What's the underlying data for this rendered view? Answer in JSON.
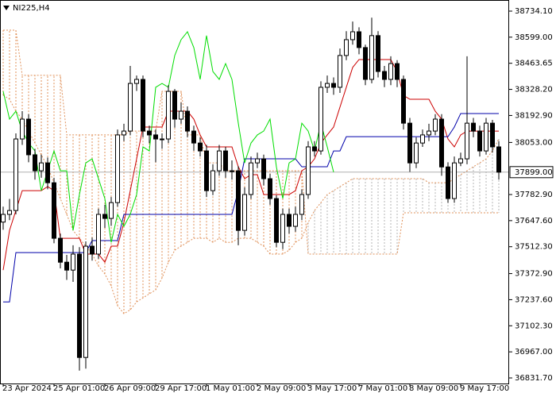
{
  "chart_data": {
    "type": "candlestick",
    "title": "NI225,H4",
    "categories": [
      "23 Apr 2024",
      null,
      null,
      null,
      null,
      null,
      null,
      null,
      "25 Apr 01:00",
      null,
      null,
      null,
      null,
      null,
      null,
      null,
      "26 Apr 09:00",
      null,
      null,
      null,
      null,
      null,
      null,
      null,
      "29 Apr 17:00",
      null,
      null,
      null,
      null,
      null,
      null,
      null,
      "1 May 01:00",
      null,
      null,
      null,
      null,
      null,
      null,
      null,
      "2 May 09:00",
      null,
      null,
      null,
      null,
      null,
      null,
      null,
      "3 May 17:00",
      null,
      null,
      null,
      null,
      null,
      null,
      null,
      "7 May 01:00",
      null,
      null,
      null,
      null,
      null,
      null,
      null,
      "8 May 09:00",
      null,
      null,
      null,
      null,
      null,
      null,
      null,
      "9 May 17:00",
      null,
      null,
      null,
      null,
      null,
      null
    ],
    "open": [
      37640,
      37680,
      37700,
      38071,
      38174,
      37989,
      37906,
      37947,
      37844,
      37556,
      37432,
      37391,
      37474,
      36938,
      37515,
      37474,
      37680,
      37659,
      37741,
      38092,
      38112,
      38359,
      38380,
      38112,
      38092,
      38071,
      38071,
      38318,
      38174,
      38215,
      38112,
      38050,
      38009,
      37803,
      37906,
      38009,
      37906,
      37906,
      37597,
      37783,
      37947,
      37968,
      37865,
      37762,
      37535,
      37680,
      37618,
      37680,
      37783,
      38030,
      38009,
      38339,
      38359,
      38339,
      38504,
      38586,
      38627,
      38545,
      38380,
      38607,
      38421,
      38380,
      38462,
      38380,
      38153,
      37947,
      38050,
      38092,
      38112,
      38174,
      37926,
      37762,
      37947,
      37968,
      38153,
      38112,
      38009,
      38153,
      38030
    ],
    "high": [
      37720,
      37760,
      38100,
      38215,
      38200,
      38020,
      37990,
      37975,
      37870,
      37580,
      37470,
      37520,
      37510,
      37540,
      37560,
      37710,
      37730,
      37770,
      38120,
      38150,
      38450,
      38400,
      38400,
      38140,
      38120,
      38100,
      38350,
      38330,
      38260,
      38240,
      38140,
      38080,
      38040,
      37940,
      38040,
      38030,
      37960,
      37930,
      37820,
      37980,
      38000,
      37990,
      37890,
      37780,
      37710,
      37710,
      37720,
      37810,
      38060,
      38060,
      38370,
      38400,
      38390,
      38540,
      38630,
      38680,
      38650,
      38560,
      38700,
      38630,
      38450,
      38500,
      38480,
      38400,
      38180,
      38080,
      38120,
      38150,
      38200,
      38200,
      37950,
      37980,
      38000,
      38500,
      38180,
      38140,
      38180,
      38170,
      38060
    ],
    "low": [
      37600,
      37650,
      37680,
      38040,
      37950,
      37860,
      37870,
      37810,
      37530,
      37400,
      37340,
      37330,
      36870,
      36880,
      37440,
      37450,
      37610,
      37620,
      37720,
      38060,
      38090,
      38320,
      38080,
      38050,
      37950,
      38020,
      38050,
      38130,
      38150,
      38080,
      38010,
      37980,
      37770,
      37780,
      37880,
      37870,
      37860,
      37520,
      37570,
      37760,
      37920,
      37830,
      37730,
      37510,
      37500,
      37580,
      37590,
      37650,
      37760,
      37980,
      37990,
      38310,
      38300,
      38310,
      38480,
      38560,
      38510,
      38350,
      38360,
      38390,
      38340,
      38350,
      38340,
      38120,
      37900,
      37920,
      38030,
      38060,
      38090,
      37880,
      37740,
      37740,
      37930,
      37940,
      38080,
      37980,
      37990,
      38000,
      37860
    ],
    "close": [
      37680,
      37700,
      38071,
      38174,
      37989,
      37906,
      37947,
      37844,
      37556,
      37432,
      37391,
      37474,
      36938,
      37515,
      37474,
      37680,
      37659,
      37741,
      38092,
      38112,
      38359,
      38380,
      38112,
      38092,
      38071,
      38071,
      38318,
      38174,
      38215,
      38112,
      38050,
      38009,
      37803,
      37906,
      38009,
      37906,
      37906,
      37597,
      37783,
      37947,
      37968,
      37865,
      37762,
      37535,
      37680,
      37618,
      37680,
      37783,
      38030,
      38009,
      38339,
      38359,
      38339,
      38504,
      38586,
      38627,
      38545,
      38380,
      38607,
      38421,
      38380,
      38462,
      38380,
      38153,
      37947,
      38050,
      38092,
      38112,
      38174,
      37926,
      37762,
      37947,
      37968,
      38153,
      38112,
      38009,
      38153,
      38030,
      37899
    ],
    "up_color": "#ffffff",
    "down_color": "#000000",
    "lines": [
      {
        "color": "#cc0000",
        "values": [
          37391,
          37597,
          37700,
          37803,
          37803,
          37803,
          37803,
          37824,
          37803,
          37556,
          37556,
          37556,
          37556,
          37474,
          37474,
          37474,
          37432,
          37515,
          37515,
          37638,
          37803,
          37968,
          38133,
          38133,
          38133,
          38133,
          38215,
          38215,
          38215,
          38215,
          38174,
          38092,
          38030,
          38030,
          38030,
          38030,
          38030,
          37927,
          37865,
          37886,
          37886,
          37783,
          37783,
          37783,
          37783,
          37783,
          37803,
          37906,
          37927,
          37968,
          38050,
          38092,
          38133,
          38236,
          38339,
          38442,
          38483,
          38483,
          38483,
          38483,
          38483,
          38483,
          38421,
          38297,
          38277,
          38277,
          38277,
          38277,
          38215,
          38174,
          38071,
          38030,
          38092,
          38112,
          38112,
          38112,
          38112,
          38112,
          38112
        ]
      },
      {
        "color": "#0000aa",
        "values": [
          37226,
          37226,
          37482,
          37482,
          37482,
          37482,
          37482,
          37482,
          37482,
          37482,
          37482,
          37482,
          37482,
          37482,
          37544,
          37544,
          37544,
          37544,
          37544,
          37680,
          37680,
          37680,
          37680,
          37680,
          37680,
          37680,
          37680,
          37680,
          37680,
          37680,
          37680,
          37680,
          37680,
          37680,
          37680,
          37680,
          37680,
          37803,
          37968,
          37968,
          37968,
          37968,
          37968,
          37968,
          37968,
          37968,
          37968,
          37927,
          37927,
          37927,
          37927,
          37927,
          38009,
          38009,
          38083,
          38083,
          38083,
          38083,
          38083,
          38083,
          38083,
          38083,
          38083,
          38083,
          38083,
          38083,
          38083,
          38083,
          38083,
          38083,
          38083,
          38133,
          38203,
          38203,
          38203,
          38203,
          38203,
          38203,
          38203
        ]
      },
      {
        "color": "#00dd00",
        "values": [
          38318,
          38174,
          38215,
          38112,
          38050,
          38009,
          37803,
          37906,
          38009,
          37906,
          37906,
          37597,
          37783,
          37947,
          37968,
          37865,
          37762,
          37535,
          37680,
          37618,
          37680,
          37783,
          38030,
          38009,
          38339,
          38359,
          38339,
          38504,
          38586,
          38627,
          38545,
          38380,
          38607,
          38421,
          38380,
          38462,
          38380,
          38153,
          37947,
          38050,
          38092,
          38112,
          38174,
          37926,
          37762,
          37947,
          37968,
          38153,
          38112,
          38009,
          38153,
          38030,
          37899,
          null,
          null,
          null,
          null,
          null,
          null,
          null,
          null,
          null,
          null,
          null,
          null,
          null,
          null,
          null,
          null,
          null,
          null,
          null,
          null,
          null,
          null,
          null,
          null,
          null,
          null
        ]
      }
    ],
    "cloud": {
      "up_color": "#b4b4b4",
      "down_color": "#e0915a",
      "span_a": [
        38298,
        38277,
        38215,
        38174,
        38112,
        38050,
        37989,
        37927,
        37844,
        37762,
        37680,
        37597,
        37556,
        37515,
        37474,
        37412,
        37371,
        37309,
        37206,
        37165,
        37185,
        37226,
        37247,
        37268,
        37288,
        37350,
        37432,
        37494,
        37515,
        37535,
        37556,
        37556,
        37556,
        37535,
        37556,
        37535,
        37535,
        37556,
        37556,
        37556,
        37535,
        37515,
        37474,
        37474,
        37474,
        37494,
        37535,
        37556,
        37638,
        37700,
        37741,
        37783,
        37803,
        37824,
        37844,
        37865,
        37865,
        37865,
        37865,
        37865,
        37865,
        37865,
        37865,
        37865,
        37865,
        37865,
        37865,
        37844,
        37844,
        37844,
        37844,
        37865,
        37886,
        37906,
        37927,
        37947,
        37968,
        38009,
        38071
      ],
      "span_b": [
        38635,
        38635,
        38635,
        38401,
        38401,
        38401,
        38401,
        38401,
        38401,
        38401,
        38092,
        38092,
        38092,
        38092,
        38092,
        38092,
        38092,
        38092,
        38092,
        38092,
        38112,
        38112,
        38112,
        38112,
        38112,
        38318,
        38318,
        38318,
        38318,
        38092,
        38092,
        38092,
        37947,
        37947,
        37947,
        37906,
        37906,
        37906,
        37906,
        37906,
        37906,
        37906,
        37906,
        37906,
        37906,
        37906,
        37906,
        37906,
        37474,
        37474,
        37474,
        37474,
        37474,
        37474,
        37474,
        37474,
        37474,
        37474,
        37474,
        37474,
        37474,
        37474,
        37474,
        37688,
        37688,
        37688,
        37688,
        37688,
        37688,
        37688,
        37688,
        37688,
        37688,
        37688,
        37688,
        37688,
        37688,
        37688,
        37688
      ]
    },
    "current_price": {
      "value": 37899,
      "label": "37899.00"
    },
    "ylim": [
      36802.9,
      38791.7
    ],
    "yticks": [
      {
        "value": 38734.1,
        "label": "38734.10"
      },
      {
        "value": 38599,
        "label": "38599.00"
      },
      {
        "value": 38463.65,
        "label": "38463.65"
      },
      {
        "value": 38328.2,
        "label": "38328.20"
      },
      {
        "value": 38192.9,
        "label": "38192.90"
      },
      {
        "value": 38053,
        "label": "38053.00"
      },
      {
        "value": 37782.9,
        "label": "37782.90"
      },
      {
        "value": 37647.6,
        "label": "37647.60"
      },
      {
        "value": 37512.3,
        "label": "37512.30"
      },
      {
        "value": 37372.9,
        "label": "37372.90"
      },
      {
        "value": 37237.6,
        "label": "37237.60"
      },
      {
        "value": 37102.3,
        "label": "37102.30"
      },
      {
        "value": 36967,
        "label": "36967.00"
      },
      {
        "value": 36831.7,
        "label": "36831.70"
      }
    ]
  }
}
